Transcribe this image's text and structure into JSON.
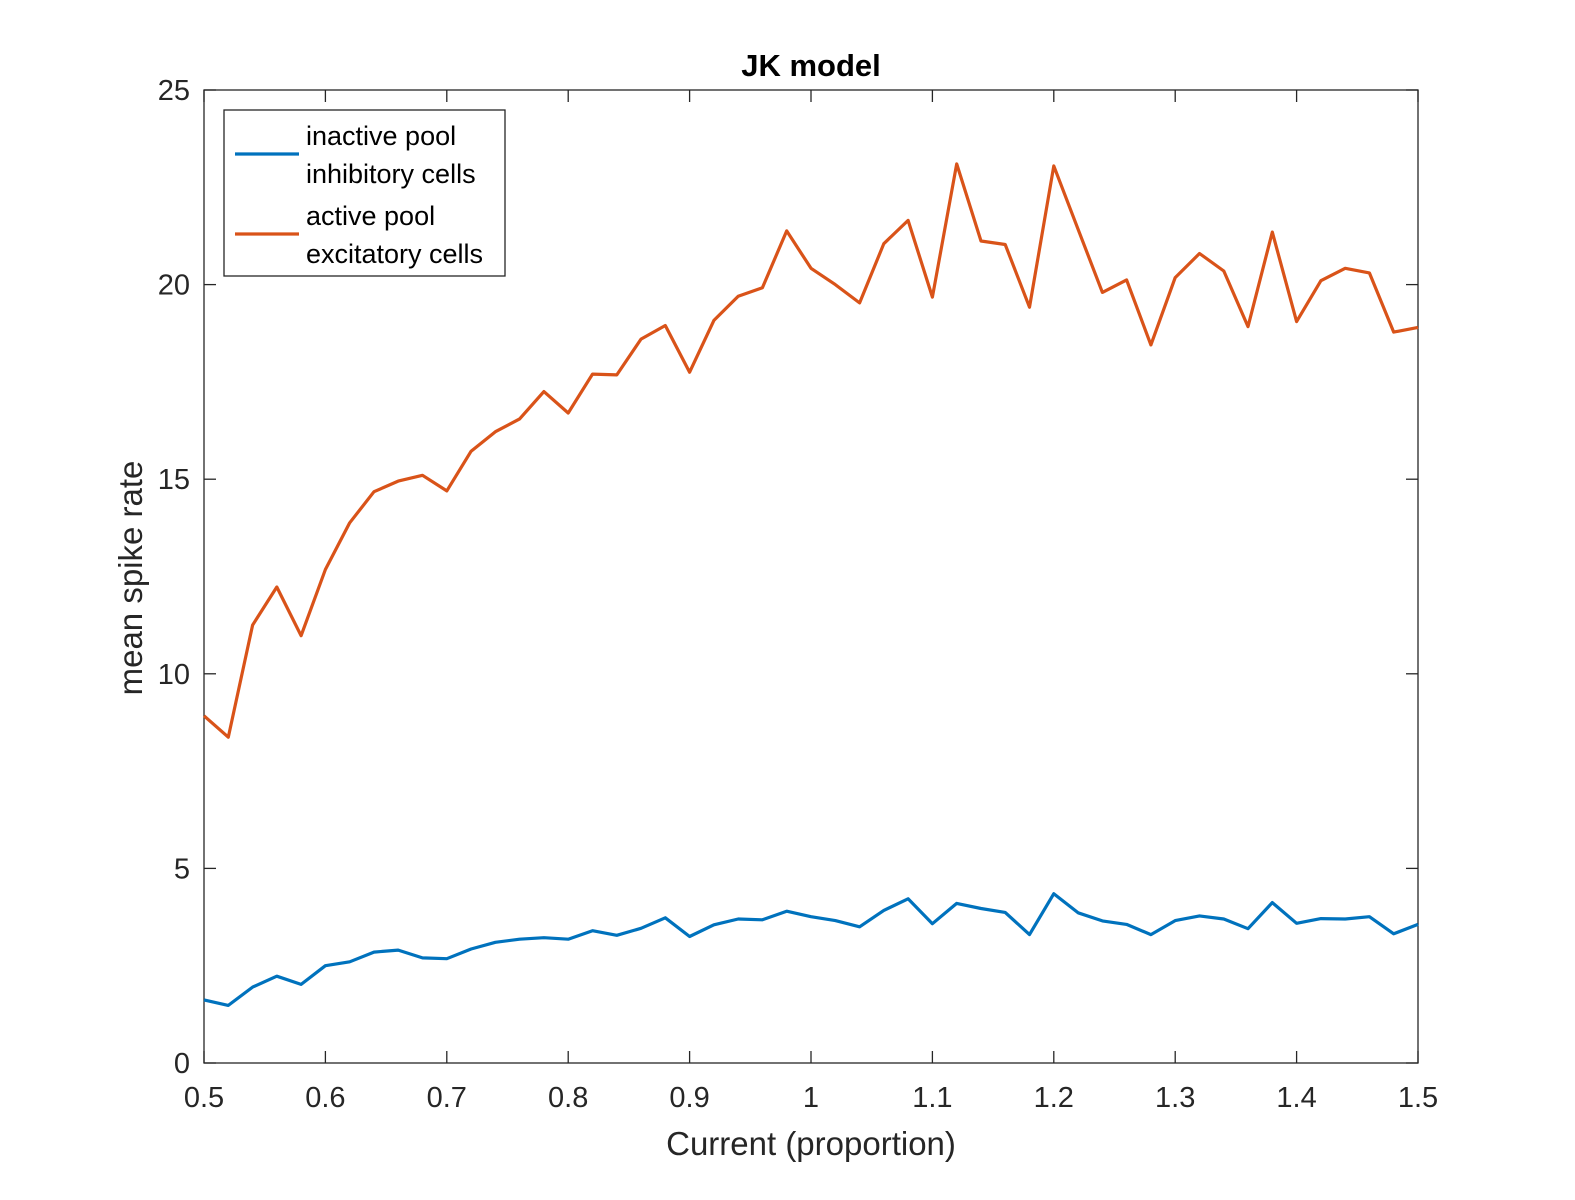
{
  "chart_data": {
    "type": "line",
    "title": "JK model",
    "xlabel": "Current (proportion)",
    "ylabel": "mean spike rate",
    "xlim": [
      0.5,
      1.5
    ],
    "ylim": [
      0,
      25
    ],
    "xticks": [
      0.5,
      0.6,
      0.7,
      0.8,
      0.9,
      1,
      1.1,
      1.2,
      1.3,
      1.4,
      1.5
    ],
    "xtick_labels": [
      "0.5",
      "0.6",
      "0.7",
      "0.8",
      "0.9",
      "1",
      "1.1",
      "1.2",
      "1.3",
      "1.4",
      "1.5"
    ],
    "yticks": [
      0,
      5,
      10,
      15,
      20,
      25
    ],
    "ytick_labels": [
      "0",
      "5",
      "10",
      "15",
      "20",
      "25"
    ],
    "grid": false,
    "legend_position": "top-left",
    "x": [
      0.5,
      0.52,
      0.54,
      0.56,
      0.58,
      0.6,
      0.62,
      0.64,
      0.66,
      0.68,
      0.7,
      0.72,
      0.74,
      0.76,
      0.78,
      0.8,
      0.82,
      0.84,
      0.86,
      0.88,
      0.9,
      0.92,
      0.94,
      0.96,
      0.98,
      1.0,
      1.02,
      1.04,
      1.06,
      1.08,
      1.1,
      1.12,
      1.14,
      1.16,
      1.18,
      1.2,
      1.22,
      1.24,
      1.26,
      1.28,
      1.3,
      1.32,
      1.34,
      1.36,
      1.38,
      1.4,
      1.42,
      1.44,
      1.46,
      1.48,
      1.5
    ],
    "series": [
      {
        "name": "inactive pool inhibitory cells",
        "legend_lines": [
          "inactive pool",
          "inhibitory cells"
        ],
        "color": "#0072BD",
        "values": [
          1.62,
          1.48,
          1.95,
          2.23,
          2.02,
          2.5,
          2.6,
          2.85,
          2.9,
          2.7,
          2.68,
          2.93,
          3.1,
          3.18,
          3.22,
          3.18,
          3.4,
          3.28,
          3.46,
          3.73,
          3.25,
          3.55,
          3.7,
          3.68,
          3.9,
          3.76,
          3.66,
          3.5,
          3.92,
          4.22,
          3.58,
          4.1,
          3.97,
          3.87,
          3.3,
          4.35,
          3.86,
          3.65,
          3.56,
          3.3,
          3.66,
          3.78,
          3.7,
          3.45,
          4.12,
          3.59,
          3.71,
          3.7,
          3.76,
          3.32,
          3.56
        ]
      },
      {
        "name": "active pool excitatory cells",
        "legend_lines": [
          "active pool",
          "excitatory cells"
        ],
        "color": "#D95319",
        "values": [
          8.92,
          8.37,
          11.25,
          12.23,
          10.98,
          12.68,
          13.88,
          14.68,
          14.95,
          15.1,
          14.7,
          15.72,
          16.22,
          16.55,
          17.25,
          16.7,
          17.7,
          17.68,
          18.6,
          18.95,
          17.75,
          19.08,
          19.7,
          19.92,
          21.38,
          20.42,
          20.0,
          19.53,
          21.05,
          21.65,
          19.68,
          23.1,
          21.12,
          21.03,
          19.42,
          23.05,
          21.42,
          19.8,
          20.12,
          18.45,
          20.18,
          20.8,
          20.35,
          18.92,
          21.35,
          19.05,
          20.1,
          20.42,
          20.3,
          18.78,
          18.9
        ]
      }
    ]
  }
}
